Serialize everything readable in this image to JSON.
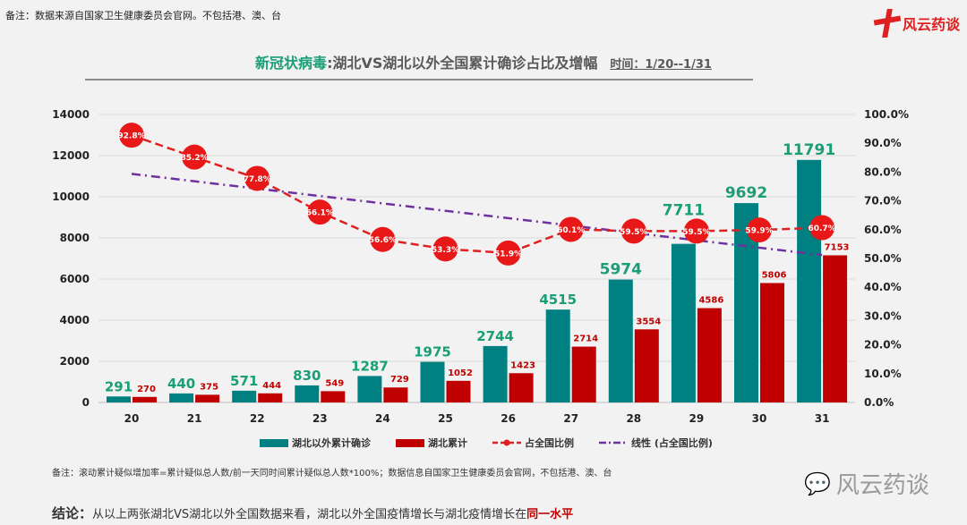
{
  "header": {
    "note": "备注：数据来源自国家卫生健康委员会官网。不包括港、澳、台",
    "logo_text": "风云药谈",
    "title_green": "新冠状病毒",
    "title_rest": ":湖北VS湖北以外全国累计确诊占比及增幅",
    "time_label": "时间：1/20--1/31"
  },
  "chart_data": {
    "type": "bar",
    "title": "新冠状病毒:湖北VS湖北以外全国累计确诊占比及增幅",
    "categories": [
      "20",
      "21",
      "22",
      "23",
      "24",
      "25",
      "26",
      "27",
      "28",
      "29",
      "30",
      "31"
    ],
    "series": [
      {
        "name": "湖北以外累计确诊",
        "type": "bar",
        "color": "#008080",
        "values": [
          291,
          440,
          571,
          830,
          1287,
          1975,
          2744,
          4515,
          5974,
          7711,
          9692,
          11791
        ],
        "labels": [
          "291",
          "440",
          "571",
          "830",
          "1287",
          "1975",
          "2744",
          "4515",
          "5974",
          "7711",
          "9692",
          "11791"
        ]
      },
      {
        "name": "湖北累计",
        "type": "bar",
        "color": "#c00000",
        "values": [
          270,
          375,
          444,
          549,
          729,
          1052,
          1423,
          2714,
          3554,
          4586,
          5806,
          7153
        ],
        "labels": [
          "270",
          "375",
          "444",
          "549",
          "729",
          "1052",
          "1423",
          "2714",
          "3554",
          "4586",
          "5806",
          "7153"
        ]
      },
      {
        "name": "占全国比例",
        "type": "line",
        "axis": "right",
        "color": "#e02020",
        "values": [
          92.8,
          85.2,
          77.8,
          66.1,
          56.6,
          53.3,
          51.9,
          60.1,
          59.5,
          59.5,
          59.9,
          60.7
        ],
        "labels": [
          "92.8%",
          "85.2%",
          "77.8%",
          "66.1%",
          "56.6%",
          "53.3%",
          "51.9%",
          "60.1%",
          "59.5%",
          "59.5%",
          "59.9%",
          "60.7%"
        ]
      },
      {
        "name": "线性 (占全国比例)",
        "type": "trendline",
        "axis": "right",
        "color": "#7030a0"
      }
    ],
    "ylim": [
      0,
      14000
    ],
    "yticks": [
      "0",
      "2000",
      "4000",
      "6000",
      "8000",
      "10000",
      "12000",
      "14000"
    ],
    "y2lim": [
      0,
      100
    ],
    "y2ticks": [
      "0.0%",
      "10.0%",
      "20.0%",
      "30.0%",
      "40.0%",
      "50.0%",
      "60.0%",
      "70.0%",
      "80.0%",
      "90.0%",
      "100.0%"
    ],
    "grid": true,
    "legend": "bottom"
  },
  "footer": {
    "note": "备注：滚动累计疑似增加率=累计疑似总人数/前一天同时间累计疑似总人数*100%；数据信息自国家卫生健康委员会官网，不包括港、澳、台",
    "conclusion_label": "结论：",
    "conclusion_text": "从以上两张湖北VS湖北以外全国数据来看，湖北以外全国疫情增长与湖北疫情增长在",
    "conclusion_highlight": "同一水平",
    "watermark": "风云药谈"
  }
}
